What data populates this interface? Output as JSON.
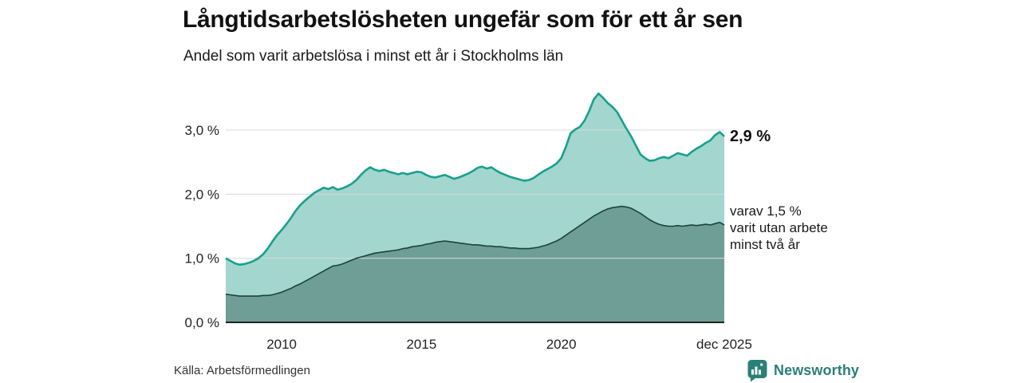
{
  "header": {
    "title": "Långtidsarbetslösheten ungefär som för ett år sen",
    "subtitle": "Andel som varit arbetslösa i minst ett år i Stockholms län"
  },
  "annotations": {
    "last_value": "2,9 %",
    "inner_lines": [
      "varav 1,5 %",
      "varit utan arbete",
      "minst två år"
    ]
  },
  "footer": {
    "source": "Källa: Arbetsförmedlingen",
    "brand": "Newsworthy"
  },
  "colors": {
    "line_total": "#18a08e",
    "fill_total": "#a2d6cf",
    "line_two_years": "#1e423d",
    "fill_two_years": "#6f9e96",
    "grid": "#d8d8d8",
    "axis": "#222222",
    "brand_teal": "#2b7f79"
  },
  "chart_data": {
    "type": "area",
    "title": "Långtidsarbetslösheten ungefär som för ett år sen",
    "subtitle": "Andel som varit arbetslösa i minst ett år i Stockholms län",
    "x_start": 2008.0,
    "x_end": 2025.83,
    "points_per_year": 6,
    "ylim": [
      0,
      3.6
    ],
    "grid": true,
    "legend": "none",
    "yticks": [
      {
        "value": 0,
        "label": "0,0 %"
      },
      {
        "value": 1,
        "label": "1,0 %"
      },
      {
        "value": 2,
        "label": "2,0 %"
      },
      {
        "value": 3,
        "label": "3,0 %"
      }
    ],
    "xticks": [
      {
        "value": 2010,
        "label": "2010"
      },
      {
        "value": 2015,
        "label": "2015"
      },
      {
        "value": 2020,
        "label": "2020"
      },
      {
        "value": 2025.83,
        "label": "dec 2025"
      }
    ],
    "series": [
      {
        "name": "Arbetslösa minst ett år",
        "end_label": "2,9 %",
        "line_color": "#18a08e",
        "fill_color": "#a2d6cf",
        "line_width": 2.6,
        "values": [
          1.0,
          0.96,
          0.92,
          0.9,
          0.91,
          0.93,
          0.96,
          1.0,
          1.06,
          1.15,
          1.26,
          1.36,
          1.44,
          1.53,
          1.63,
          1.74,
          1.83,
          1.9,
          1.96,
          2.02,
          2.06,
          2.1,
          2.08,
          2.11,
          2.07,
          2.09,
          2.12,
          2.16,
          2.22,
          2.3,
          2.37,
          2.42,
          2.38,
          2.36,
          2.38,
          2.35,
          2.33,
          2.31,
          2.33,
          2.31,
          2.33,
          2.35,
          2.34,
          2.3,
          2.27,
          2.26,
          2.28,
          2.3,
          2.27,
          2.24,
          2.26,
          2.29,
          2.32,
          2.36,
          2.41,
          2.43,
          2.4,
          2.42,
          2.37,
          2.33,
          2.3,
          2.27,
          2.25,
          2.23,
          2.21,
          2.22,
          2.25,
          2.3,
          2.35,
          2.39,
          2.43,
          2.48,
          2.56,
          2.74,
          2.95,
          3.01,
          3.05,
          3.15,
          3.3,
          3.48,
          3.57,
          3.5,
          3.42,
          3.36,
          3.28,
          3.15,
          3.02,
          2.9,
          2.76,
          2.62,
          2.56,
          2.52,
          2.53,
          2.56,
          2.58,
          2.56,
          2.6,
          2.64,
          2.62,
          2.6,
          2.66,
          2.71,
          2.75,
          2.8,
          2.84,
          2.92,
          2.97,
          2.9
        ]
      },
      {
        "name": "varav utan arbete minst två år",
        "end_label": "1,5 %",
        "line_color": "#1e423d",
        "fill_color": "#6f9e96",
        "line_width": 1.6,
        "values": [
          0.44,
          0.43,
          0.42,
          0.41,
          0.41,
          0.41,
          0.41,
          0.41,
          0.42,
          0.42,
          0.43,
          0.45,
          0.47,
          0.5,
          0.53,
          0.57,
          0.6,
          0.64,
          0.68,
          0.72,
          0.76,
          0.8,
          0.84,
          0.88,
          0.89,
          0.91,
          0.94,
          0.97,
          1.0,
          1.02,
          1.04,
          1.06,
          1.08,
          1.09,
          1.1,
          1.11,
          1.12,
          1.13,
          1.15,
          1.16,
          1.18,
          1.19,
          1.2,
          1.22,
          1.23,
          1.25,
          1.26,
          1.27,
          1.26,
          1.25,
          1.24,
          1.23,
          1.22,
          1.21,
          1.21,
          1.2,
          1.19,
          1.19,
          1.18,
          1.18,
          1.17,
          1.16,
          1.16,
          1.15,
          1.15,
          1.15,
          1.16,
          1.17,
          1.19,
          1.21,
          1.24,
          1.27,
          1.31,
          1.36,
          1.41,
          1.46,
          1.51,
          1.56,
          1.61,
          1.66,
          1.7,
          1.74,
          1.77,
          1.79,
          1.8,
          1.81,
          1.8,
          1.78,
          1.74,
          1.7,
          1.65,
          1.6,
          1.56,
          1.53,
          1.51,
          1.5,
          1.5,
          1.51,
          1.5,
          1.51,
          1.52,
          1.51,
          1.52,
          1.53,
          1.52,
          1.54,
          1.56,
          1.52
        ]
      }
    ]
  }
}
